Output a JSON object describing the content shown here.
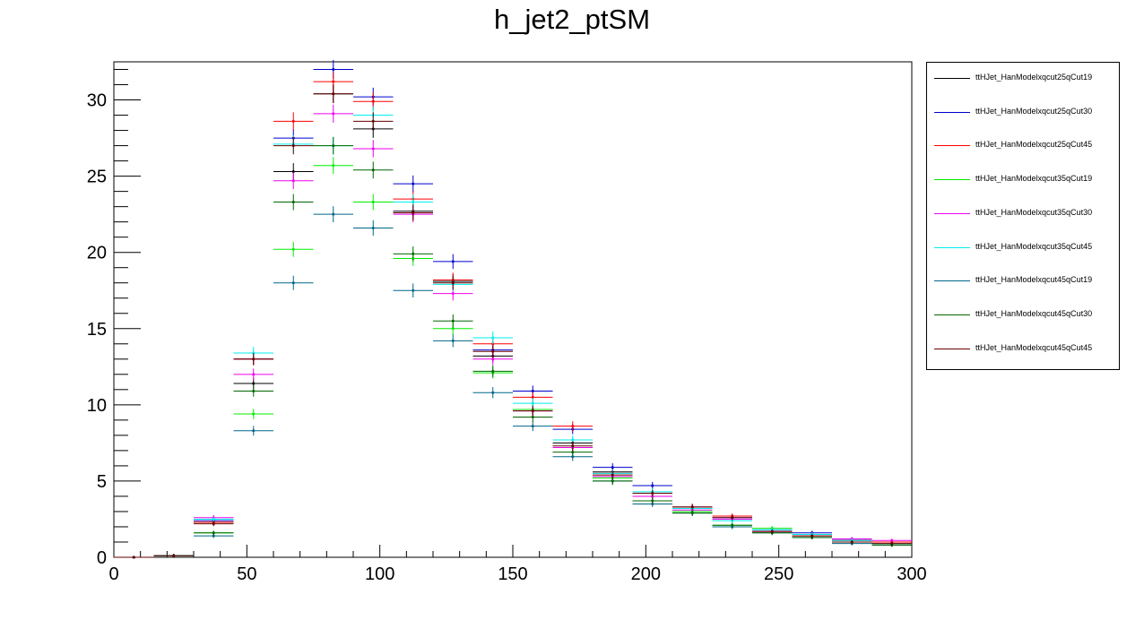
{
  "chart_data": {
    "type": "histogram",
    "title": "h_jet2_ptSM",
    "xlabel": "",
    "ylabel": "",
    "xlim": [
      0,
      300
    ],
    "ylim": [
      0,
      32.5
    ],
    "x_ticks": [
      0,
      50,
      100,
      150,
      200,
      250,
      300
    ],
    "y_ticks": [
      0,
      5,
      10,
      15,
      20,
      25,
      30
    ],
    "bin_edges": [
      0,
      15,
      30,
      45,
      60,
      75,
      90,
      105,
      120,
      135,
      150,
      165,
      180,
      195,
      210,
      225,
      240,
      255,
      270,
      285,
      300
    ],
    "legend_position": "right, outside plot",
    "grid": false,
    "series": [
      {
        "name": "ttHJet_HanModelxqcut25qCut19",
        "color": "#000000",
        "values": [
          0,
          0.1,
          2.3,
          11.4,
          25.3,
          30.4,
          28.1,
          22.7,
          18.1,
          13.2,
          9.7,
          7.5,
          5.6,
          4.0,
          3.2,
          2.5,
          1.7,
          1.5,
          1.1,
          0.9
        ]
      },
      {
        "name": "ttHJet_HanModelxqcut25qCut30",
        "color": "#0000cc",
        "values": [
          0,
          0.1,
          2.4,
          13.0,
          27.5,
          32.0,
          30.2,
          24.5,
          19.4,
          13.6,
          10.9,
          8.4,
          5.9,
          4.7,
          3.3,
          2.6,
          1.8,
          1.6,
          1.2,
          1.0
        ]
      },
      {
        "name": "ttHJet_HanModelxqcut25qCut45",
        "color": "#ff0000",
        "values": [
          0,
          0.1,
          2.3,
          13.0,
          28.6,
          31.2,
          29.9,
          23.5,
          18.2,
          14.0,
          10.5,
          8.6,
          5.5,
          4.2,
          3.3,
          2.7,
          1.7,
          1.4,
          1.1,
          1.0
        ]
      },
      {
        "name": "ttHJet_HanModelxqcut35qCut19",
        "color": "#00ee00",
        "values": [
          0,
          0.1,
          1.6,
          9.4,
          20.2,
          25.7,
          23.3,
          19.6,
          15.0,
          12.1,
          9.7,
          7.2,
          5.2,
          4.0,
          3.0,
          2.1,
          1.9,
          1.5,
          1.0,
          0.9
        ]
      },
      {
        "name": "ttHJet_HanModelxqcut35qCut30",
        "color": "#ee00ee",
        "values": [
          0,
          0.1,
          2.6,
          12.0,
          24.7,
          29.1,
          26.8,
          22.5,
          17.3,
          13.0,
          9.6,
          7.2,
          5.3,
          4.0,
          3.1,
          2.5,
          1.7,
          1.5,
          1.2,
          1.1
        ]
      },
      {
        "name": "ttHJet_HanModelxqcut35qCut45",
        "color": "#00eeee",
        "values": [
          0,
          0.1,
          2.5,
          13.4,
          27.1,
          27.0,
          29.0,
          23.3,
          17.9,
          14.4,
          10.1,
          7.7,
          5.5,
          4.3,
          3.2,
          2.4,
          1.8,
          1.5,
          1.1,
          0.9
        ]
      },
      {
        "name": "ttHJet_HanModelxqcut45qCut19",
        "color": "#006688",
        "values": [
          0,
          0.1,
          1.4,
          8.3,
          18.0,
          22.5,
          21.6,
          17.5,
          14.2,
          10.8,
          8.6,
          6.6,
          5.0,
          3.5,
          2.9,
          2.0,
          1.6,
          1.3,
          0.9,
          0.8
        ]
      },
      {
        "name": "ttHJet_HanModelxqcut45qCut30",
        "color": "#006600",
        "values": [
          0,
          0.1,
          1.6,
          10.9,
          23.3,
          27.0,
          25.4,
          19.9,
          15.5,
          12.2,
          9.2,
          6.9,
          5.0,
          3.7,
          2.9,
          2.1,
          1.6,
          1.3,
          1.0,
          0.8
        ]
      },
      {
        "name": "ttHJet_HanModelxqcut45qCut45",
        "color": "#660000",
        "values": [
          0,
          0.1,
          2.2,
          13.0,
          27.0,
          30.4,
          28.6,
          22.6,
          18.0,
          13.5,
          9.6,
          7.3,
          5.4,
          4.2,
          3.3,
          2.6,
          1.7,
          1.4,
          1.0,
          0.9
        ]
      }
    ]
  }
}
